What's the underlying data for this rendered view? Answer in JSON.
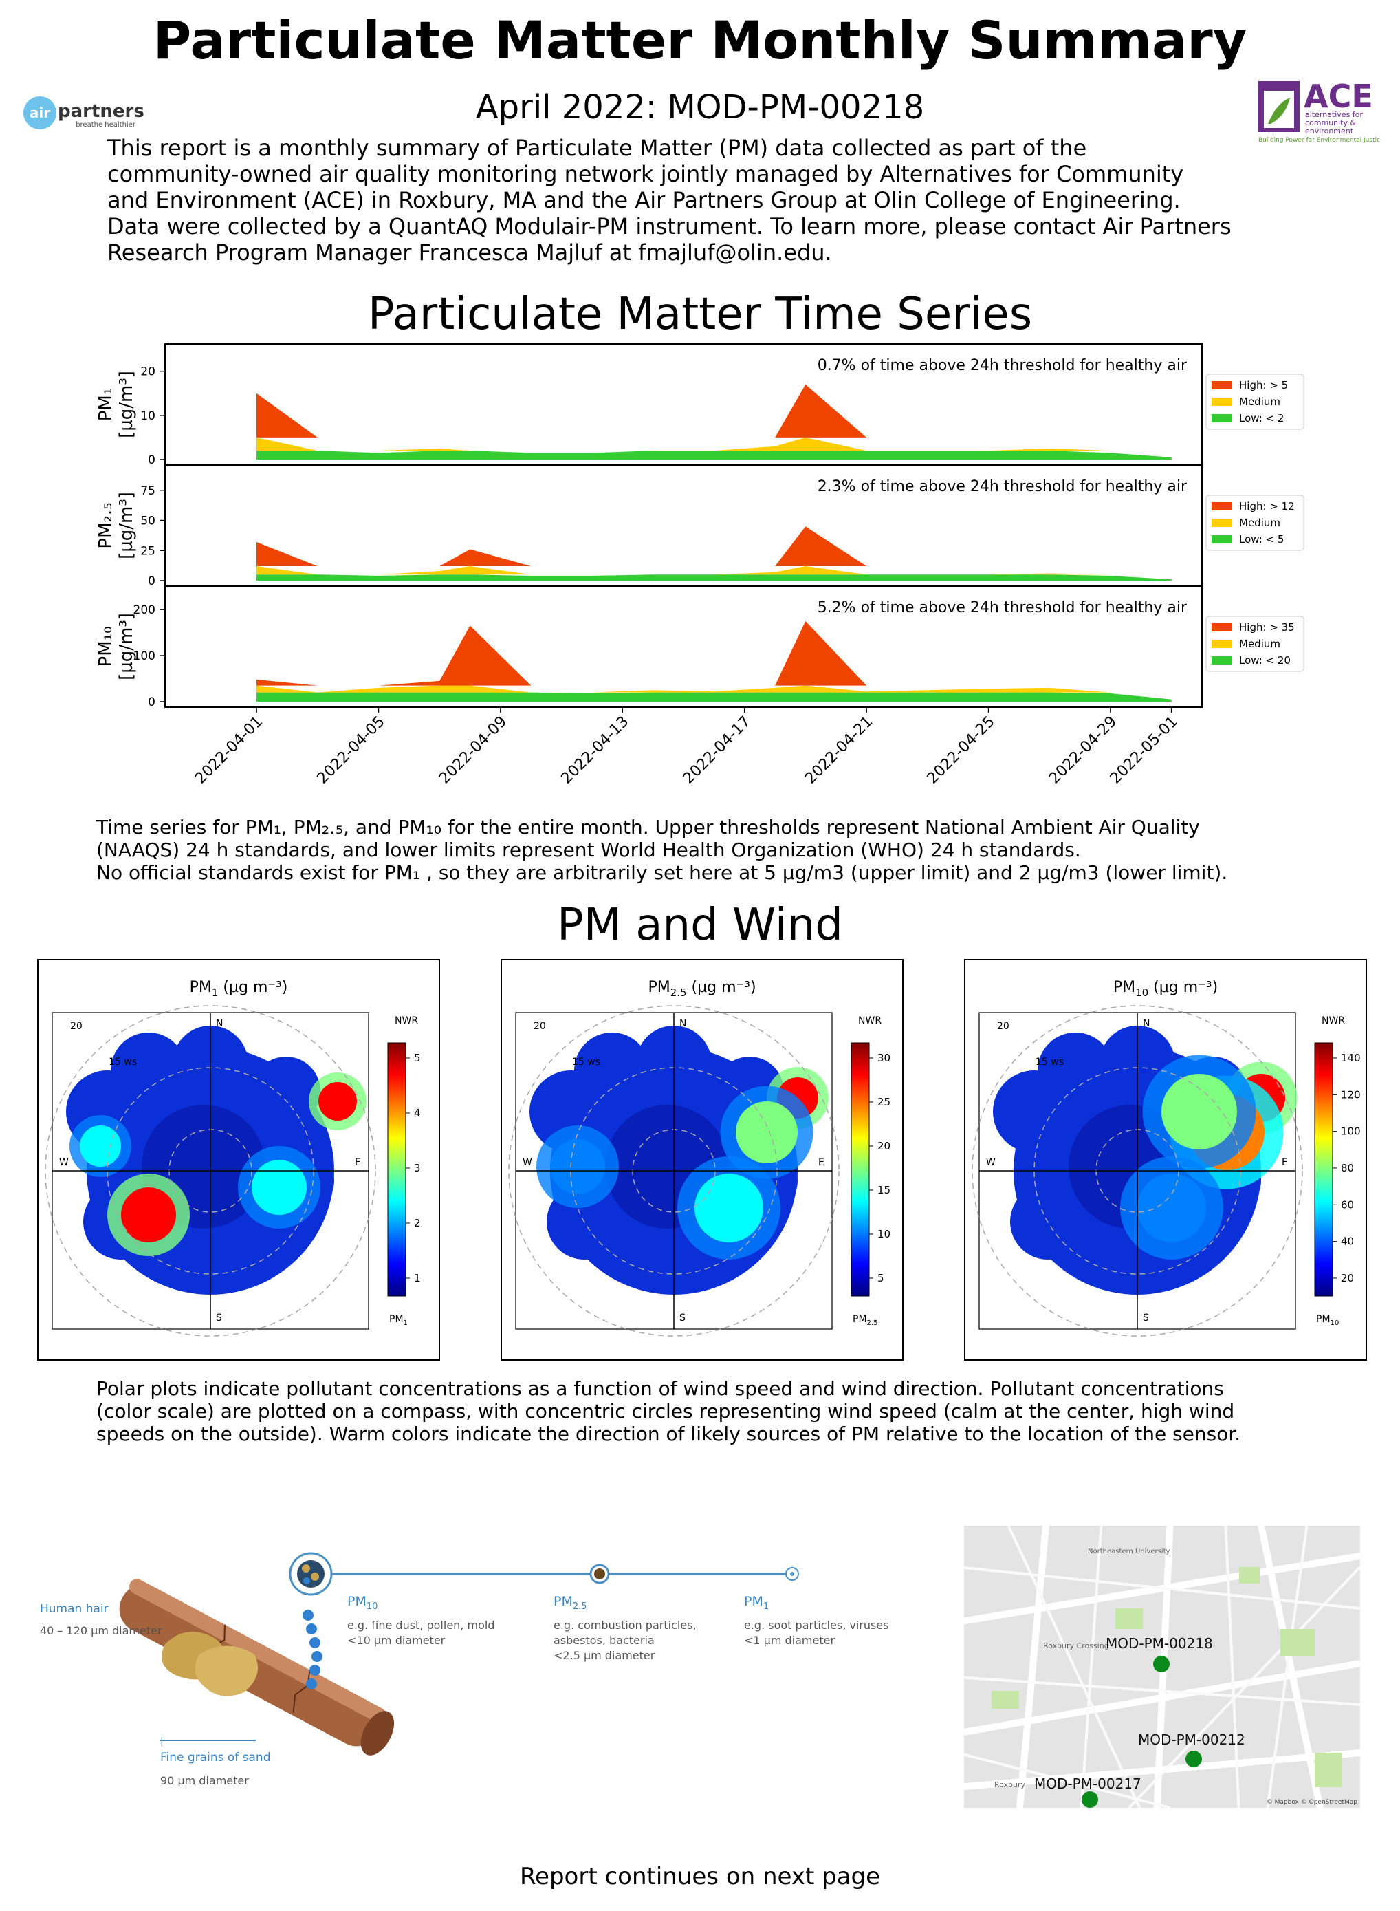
{
  "header": {
    "title": "Particulate Matter Monthly Summary",
    "subtitle": "April 2022: MOD-PM-00218",
    "intro": "This report is a monthly summary of Particulate Matter (PM) data collected as part of the\ncommunity-owned air quality monitoring network jointly managed by Alternatives for Community\nand Environment (ACE) in Roxbury, MA and the Air Partners Group at Olin College of Engineering.\nData were collected by a QuantAQ Modulair-PM instrument. To learn more, please contact Air Partners\nResearch Program Manager Francesca Majluf at fmajluf@olin.edu."
  },
  "logos": {
    "left": {
      "text_a": "air",
      "text_b": "partners",
      "tagline": "breathe healthier"
    },
    "right": {
      "name": "ACE",
      "line1": "alternatives for",
      "line2": "community &",
      "line3": "environment",
      "tagline": "Building Power for Environmental Justice"
    }
  },
  "time_series": {
    "section_title": "Particulate Matter Time Series",
    "caption": "Time series for PM₁, PM₂.₅, and PM₁₀ for the entire month. Upper thresholds represent National Ambient Air Quality\n(NAAQS) 24 h standards, and lower limits represent World Health Organization (WHO) 24 h standards.\nNo official standards exist for PM₁ , so they are arbitrarily set here at 5 µg/m3 (upper limit) and 2 µg/m3 (lower limit).",
    "x_ticks": [
      "2022-04-01",
      "2022-04-05",
      "2022-04-09",
      "2022-04-13",
      "2022-04-17",
      "2022-04-21",
      "2022-04-25",
      "2022-04-29",
      "2022-05-01"
    ],
    "colors": {
      "high": "#ee4400",
      "medium": "#ffcc00",
      "low": "#33cc33"
    }
  },
  "chart_data": [
    {
      "type": "area",
      "ylabel_line1": "PM₁",
      "ylabel_line2": "[µg/m³]",
      "y_ticks": [
        "0",
        "10",
        "20"
      ],
      "ylim": [
        0,
        24
      ],
      "note": "0.7% of time above 24h threshold for healthy air",
      "legend": [
        "High: > 5",
        "Medium",
        "Low: < 2"
      ],
      "thresholds": [
        2,
        5
      ],
      "x": [
        "2022-04-01",
        "2022-04-03",
        "2022-04-05",
        "2022-04-07",
        "2022-04-08",
        "2022-04-10",
        "2022-04-12",
        "2022-04-14",
        "2022-04-16",
        "2022-04-18",
        "2022-04-19",
        "2022-04-21",
        "2022-04-23",
        "2022-04-25",
        "2022-04-27",
        "2022-04-29",
        "2022-05-01"
      ],
      "values": [
        15,
        2,
        1.5,
        2.5,
        2,
        1.5,
        1.5,
        2,
        2,
        3,
        17,
        2,
        2,
        2,
        2.5,
        1.5,
        0.5
      ]
    },
    {
      "type": "area",
      "ylabel_line1": "PM₂.₅",
      "ylabel_line2": "[µg/m³]",
      "y_ticks": [
        "0",
        "25",
        "50",
        "75"
      ],
      "ylim": [
        0,
        88
      ],
      "note": "2.3% of time above 24h threshold for healthy air",
      "legend": [
        "High: > 12",
        "Medium",
        "Low: < 5"
      ],
      "thresholds": [
        5,
        12
      ],
      "x": [
        "2022-04-01",
        "2022-04-03",
        "2022-04-05",
        "2022-04-07",
        "2022-04-08",
        "2022-04-10",
        "2022-04-12",
        "2022-04-14",
        "2022-04-16",
        "2022-04-18",
        "2022-04-19",
        "2022-04-21",
        "2022-04-23",
        "2022-04-25",
        "2022-04-27",
        "2022-04-29",
        "2022-05-01"
      ],
      "values": [
        32,
        5,
        4,
        8,
        26,
        4,
        4,
        5,
        5,
        7,
        45,
        5,
        5,
        5,
        6,
        4,
        1
      ]
    },
    {
      "type": "area",
      "ylabel_line1": "PM₁₀",
      "ylabel_line2": "[µg/m³]",
      "y_ticks": [
        "0",
        "100",
        "200"
      ],
      "ylim": [
        0,
        230
      ],
      "note": "5.2% of time above 24h threshold for healthy air",
      "legend": [
        "High: > 35",
        "Medium",
        "Low: < 20"
      ],
      "thresholds": [
        20,
        35
      ],
      "x": [
        "2022-04-01",
        "2022-04-03",
        "2022-04-05",
        "2022-04-07",
        "2022-04-08",
        "2022-04-10",
        "2022-04-12",
        "2022-04-14",
        "2022-04-16",
        "2022-04-18",
        "2022-04-19",
        "2022-04-21",
        "2022-04-23",
        "2022-04-25",
        "2022-04-27",
        "2022-04-29",
        "2022-05-01"
      ],
      "values": [
        48,
        20,
        30,
        45,
        165,
        20,
        18,
        25,
        22,
        30,
        175,
        22,
        25,
        28,
        30,
        18,
        5
      ]
    }
  ],
  "pm_wind": {
    "section_title": "PM and Wind",
    "compass": {
      "n": "N",
      "s": "S",
      "e": "E",
      "w": "W",
      "speed_outer": "20",
      "speed_mid": "15 ws",
      "colorbar_title": "NWR"
    },
    "plots": [
      {
        "title_base": "PM",
        "title_sub": "1",
        "title_units": "(µg m⁻³)",
        "ticks": [
          "1",
          "2",
          "3",
          "4",
          "5"
        ],
        "unit_base": "PM",
        "unit_sub": "1"
      },
      {
        "title_base": "PM",
        "title_sub": "2.5",
        "title_units": "(µg m⁻³)",
        "ticks": [
          "5",
          "10",
          "15",
          "20",
          "25",
          "30"
        ],
        "unit_base": "PM",
        "unit_sub": "2.5"
      },
      {
        "title_base": "PM",
        "title_sub": "10",
        "title_units": "(µg m⁻³)",
        "ticks": [
          "20",
          "40",
          "60",
          "80",
          "100",
          "120",
          "140"
        ],
        "unit_base": "PM",
        "unit_sub": "10"
      }
    ],
    "caption": "Polar plots indicate pollutant concentrations as a function of wind speed and wind direction. Pollutant concentrations\n(color scale) are plotted on a compass, with concentric circles representing wind speed (calm at the center, high wind\nspeeds on the outside). Warm colors indicate the direction of likely sources of PM relative to the location of the sensor."
  },
  "size_diagram": {
    "hair_label": "Human hair",
    "hair_size": "40 – 120 µm diameter",
    "sand_label": "Fine grains of sand",
    "sand_size": "90 µm diameter",
    "pm10_sub": "10",
    "pm10_desc1": "e.g. fine dust, pollen, mold",
    "pm10_desc2": "<10 µm diameter",
    "pm25_sub": "2.5",
    "pm25_desc1": "e.g. combustion particles,",
    "pm25_desc2": "asbestos, bacteria",
    "pm25_desc3": "<2.5 µm diameter",
    "pm1_sub": "1",
    "pm1_desc1": "e.g. soot particles, viruses",
    "pm1_desc2": "<1 µm diameter",
    "pm_base": "PM"
  },
  "map": {
    "markers": [
      "MOD-PM-00218",
      "MOD-PM-00212",
      "MOD-PM-00217"
    ],
    "places": [
      "Northeastern University",
      "Roxbury Crossing",
      "Roxbury"
    ],
    "attribution": "© Mapbox © OpenStreetMap"
  },
  "footer": "Report continues on next page"
}
